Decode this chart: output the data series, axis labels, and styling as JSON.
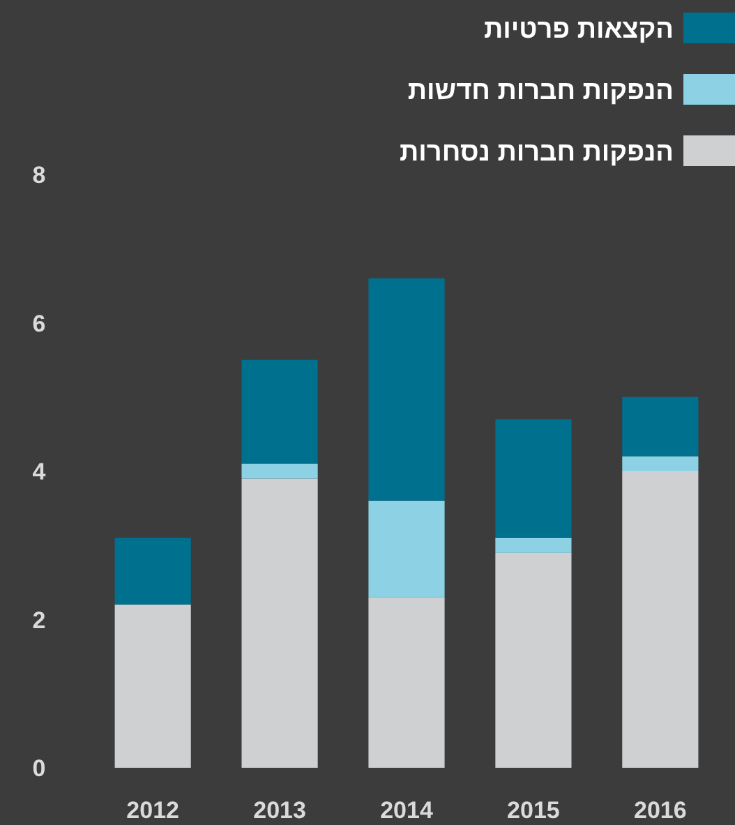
{
  "chart_data": {
    "type": "bar",
    "stacked": true,
    "categories": [
      "2012",
      "2013",
      "2014",
      "2015",
      "2016"
    ],
    "series": [
      {
        "name": "הנפקות חברות נסחרות",
        "color": "#cfd0d2",
        "values": [
          2.2,
          3.9,
          2.3,
          2.9,
          4.0
        ]
      },
      {
        "name": "הנפקות חברות חדשות",
        "color": "#8dd2e4",
        "values": [
          0,
          0.2,
          1.3,
          0.2,
          0.2
        ]
      },
      {
        "name": "הקצאות פרטיות",
        "color": "#00708f",
        "values": [
          0.9,
          1.4,
          3.0,
          1.6,
          0.8
        ]
      }
    ],
    "ylim": [
      0,
      8
    ],
    "yticks": [
      0,
      2,
      4,
      6,
      8
    ],
    "legend": "top right"
  }
}
